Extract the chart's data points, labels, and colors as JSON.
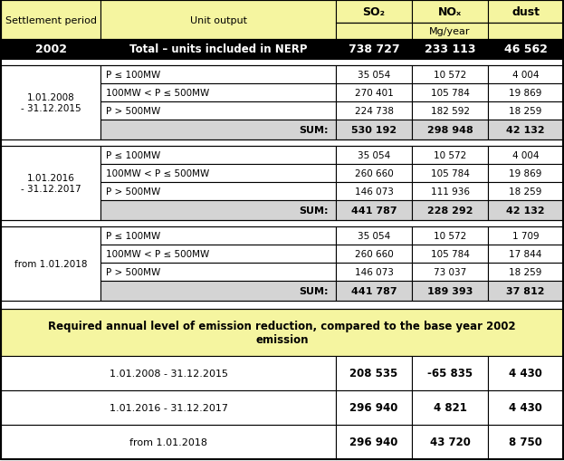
{
  "title_row": [
    "Settlement period",
    "Unit output",
    "SO₂",
    "NOₓ",
    "dust"
  ],
  "subtitle_row": [
    "",
    "",
    "Mg/year",
    "",
    ""
  ],
  "base_row": [
    "2002",
    "Total – units included in NERP",
    "738 727",
    "233 113",
    "46 562"
  ],
  "section1_label": "1.01.2008\n- 31.12.2015",
  "section2_label": "1.01.2016\n- 31.12.2017",
  "section3_label": "from 1.01.2018",
  "section1_rows": [
    [
      "P ≤ 100MW",
      "35 054",
      "10 572",
      "4 004"
    ],
    [
      "100MW < P ≤ 500MW",
      "270 401",
      "105 784",
      "19 869"
    ],
    [
      "P > 500MW",
      "224 738",
      "182 592",
      "18 259"
    ]
  ],
  "section2_rows": [
    [
      "P ≤ 100MW",
      "35 054",
      "10 572",
      "4 004"
    ],
    [
      "100MW < P ≤ 500MW",
      "260 660",
      "105 784",
      "19 869"
    ],
    [
      "P > 500MW",
      "146 073",
      "111 936",
      "18 259"
    ]
  ],
  "section3_rows": [
    [
      "P ≤ 100MW",
      "35 054",
      "10 572",
      "1 709"
    ],
    [
      "100MW < P ≤ 500MW",
      "260 660",
      "105 784",
      "17 844"
    ],
    [
      "P > 500MW",
      "146 073",
      "73 037",
      "18 259"
    ]
  ],
  "section1_sum": [
    "SUM:",
    "530 192",
    "298 948",
    "42 132"
  ],
  "section2_sum": [
    "SUM:",
    "441 787",
    "228 292",
    "42 132"
  ],
  "section3_sum": [
    "SUM:",
    "441 787",
    "189 393",
    "37 812"
  ],
  "bottom_title": "Required annual level of emission reduction, compared to the base year 2002\nemission",
  "bottom_rows": [
    [
      "1.01.2008 - 31.12.2015",
      "208 535",
      "-65 835",
      "4 430"
    ],
    [
      "1.01.2016 - 31.12.2017",
      "296 940",
      "4 821",
      "4 430"
    ],
    [
      "from 1.01.2018",
      "296 940",
      "43 720",
      "8 750"
    ]
  ],
  "color_header": "#f5f5a0",
  "color_black_row": "#000000",
  "color_white": "#ffffff",
  "color_sum_bg": "#d4d4d4",
  "color_bottom_header": "#f5f5a0",
  "color_border": "#000000",
  "fig_w": 6.23,
  "fig_h": 5.1,
  "dpi": 100
}
